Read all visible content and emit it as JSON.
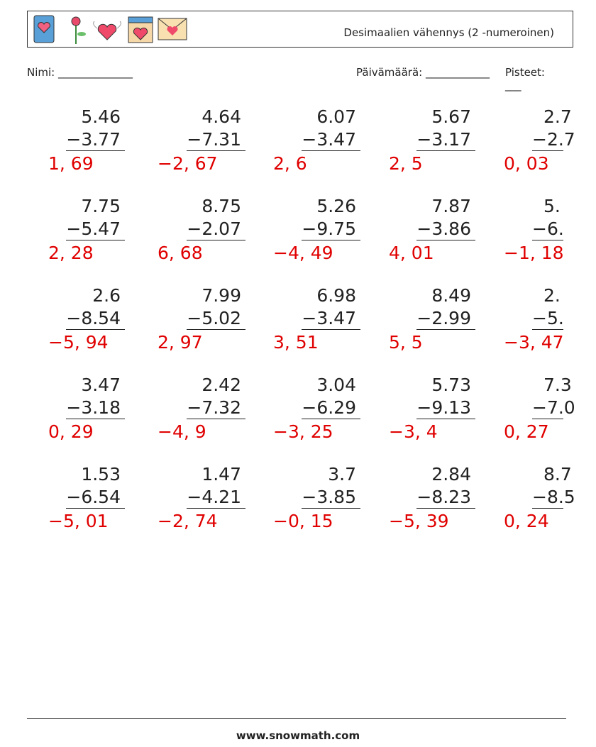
{
  "header": {
    "title": "Desimaalien vähennys (2 -numeroinen)"
  },
  "fields": {
    "name": "Nimi: ______________",
    "date": "Päivämäärä: ____________",
    "score": "Pisteet: ___"
  },
  "problems": [
    [
      {
        "top": "5.46",
        "bottom": "−3.77",
        "answer": "1, 69"
      },
      {
        "top": "4.64",
        "bottom": "−7.31",
        "answer": "−2, 67"
      },
      {
        "top": "6.07",
        "bottom": "−3.47",
        "answer": "2, 6"
      },
      {
        "top": "5.67",
        "bottom": "−3.17",
        "answer": "2, 5"
      },
      {
        "top": "2.7",
        "bottom": "−2.7",
        "answer": "0, 03"
      }
    ],
    [
      {
        "top": "7.75",
        "bottom": "−5.47",
        "answer": "2, 28"
      },
      {
        "top": "8.75",
        "bottom": "−2.07",
        "answer": "6, 68"
      },
      {
        "top": "5.26",
        "bottom": "−9.75",
        "answer": "−4, 49"
      },
      {
        "top": "7.87",
        "bottom": "−3.86",
        "answer": "4, 01"
      },
      {
        "top": "5.",
        "bottom": "−6.",
        "answer": "−1, 18"
      }
    ],
    [
      {
        "top": "2.6",
        "bottom": "−8.54",
        "answer": "−5, 94"
      },
      {
        "top": "7.99",
        "bottom": "−5.02",
        "answer": "2, 97"
      },
      {
        "top": "6.98",
        "bottom": "−3.47",
        "answer": "3, 51"
      },
      {
        "top": "8.49",
        "bottom": "−2.99",
        "answer": "5, 5"
      },
      {
        "top": "2.",
        "bottom": "−5.",
        "answer": "−3, 47"
      }
    ],
    [
      {
        "top": "3.47",
        "bottom": "−3.18",
        "answer": "0, 29"
      },
      {
        "top": "2.42",
        "bottom": "−7.32",
        "answer": "−4, 9"
      },
      {
        "top": "3.04",
        "bottom": "−6.29",
        "answer": "−3, 25"
      },
      {
        "top": "5.73",
        "bottom": "−9.13",
        "answer": "−3, 4"
      },
      {
        "top": "7.3",
        "bottom": "−7.0",
        "answer": "0, 27"
      }
    ],
    [
      {
        "top": "1.53",
        "bottom": "−6.54",
        "answer": "−5, 01"
      },
      {
        "top": "1.47",
        "bottom": "−4.21",
        "answer": "−2, 74"
      },
      {
        "top": "3.7",
        "bottom": "−3.85",
        "answer": "−0, 15"
      },
      {
        "top": "2.84",
        "bottom": "−8.23",
        "answer": "−5, 39"
      },
      {
        "top": "8.7",
        "bottom": "−8.5",
        "answer": "0, 24"
      }
    ]
  ],
  "footer": "www.snowmath.com"
}
